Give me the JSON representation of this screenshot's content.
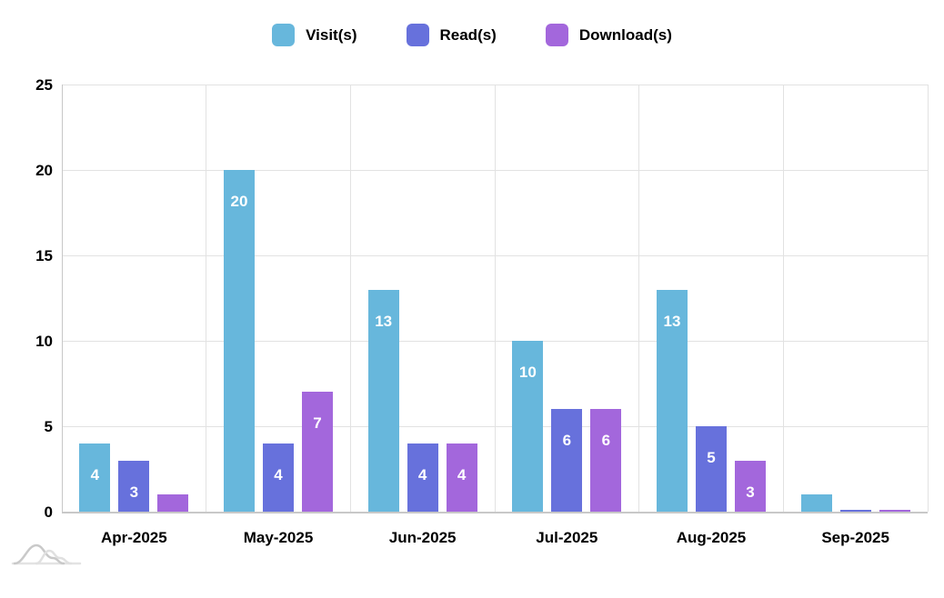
{
  "chart_data": {
    "type": "bar",
    "title": "",
    "categories": [
      "Apr-2025",
      "May-2025",
      "Jun-2025",
      "Jul-2025",
      "Aug-2025",
      "Sep-2025"
    ],
    "series": [
      {
        "name": "Visit(s)",
        "color": "#67b7dc",
        "values": [
          4,
          20,
          13,
          10,
          13,
          1
        ]
      },
      {
        "name": "Read(s)",
        "color": "#6771dc",
        "values": [
          3,
          4,
          4,
          6,
          5,
          0
        ]
      },
      {
        "name": "Download(s)",
        "color": "#a367dc",
        "values": [
          1,
          7,
          4,
          6,
          3,
          0
        ]
      }
    ],
    "xlabel": "",
    "ylabel": "",
    "ylim": [
      0,
      25
    ],
    "yticks": [
      0,
      5,
      10,
      15,
      20,
      25
    ],
    "grid": true,
    "legend_position": "top",
    "bar_label_color": "#ffffff"
  },
  "colors": {
    "background": "#ffffff",
    "gridline": "#e2e2e2",
    "axis_line": "#c8c8c8",
    "text": "#000000",
    "bar_value_text": "#ffffff",
    "watermark_gray_dark": "#c9c9c9",
    "watermark_gray_light": "#e3e3e3"
  },
  "watermark": {
    "icon": "wave-logo-icon"
  }
}
